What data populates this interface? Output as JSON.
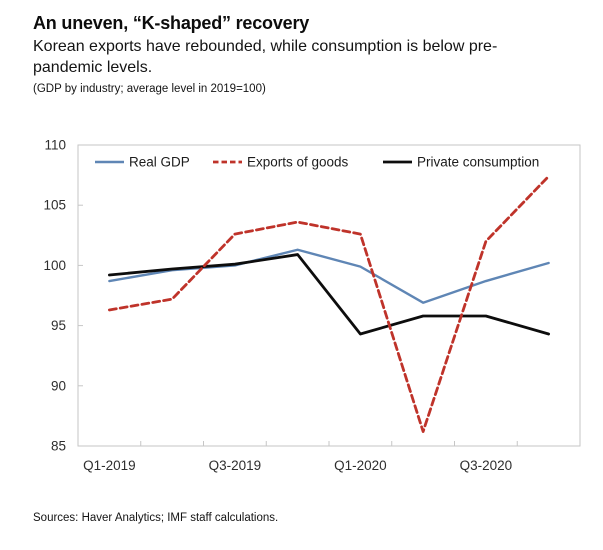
{
  "header": {
    "title": "An uneven, “K-shaped” recovery",
    "subtitle": "Korean exports have rebounded, while consumption is below pre-pandemic levels.",
    "note": "(GDP by industry; average level in 2019=100)"
  },
  "footer": {
    "sources": "Sources: Haver Analytics; IMF staff calculations."
  },
  "chart_data": {
    "type": "line",
    "title": "An uneven, “K-shaped” recovery",
    "subtitle": "Korean exports have rebounded, while consumption is below pre-pandemic levels.",
    "unit_note": "(GDP by industry; average level in 2019=100)",
    "x": [
      "Q1-2019",
      "Q2-2019",
      "Q3-2019",
      "Q4-2019",
      "Q1-2020",
      "Q2-2020",
      "Q3-2020",
      "Q4-2020"
    ],
    "x_tick_labels": [
      "Q1-2019",
      "Q3-2019",
      "Q1-2020",
      "Q3-2020"
    ],
    "x_tick_label_positions": [
      0,
      2,
      4,
      6
    ],
    "series": [
      {
        "id": "real-gdp",
        "name": "Real GDP",
        "color": "#5f86b5",
        "style": "solid",
        "stroke_width": 2.4,
        "values": [
          98.7,
          99.6,
          100.0,
          101.3,
          99.9,
          96.9,
          98.7,
          100.2
        ]
      },
      {
        "id": "exports-of-goods",
        "name": "Exports of goods",
        "color": "#bf332a",
        "style": "dashed",
        "stroke_width": 2.8,
        "values": [
          96.3,
          97.2,
          102.6,
          103.6,
          102.6,
          86.2,
          102.0,
          107.4
        ]
      },
      {
        "id": "private-consumption",
        "name": "Private consumption",
        "color": "#0d0d0d",
        "style": "solid",
        "stroke_width": 2.8,
        "values": [
          99.2,
          99.7,
          100.1,
          100.9,
          94.3,
          95.8,
          95.8,
          94.3
        ]
      }
    ],
    "ylim": [
      85,
      110
    ],
    "yticks": [
      85,
      90,
      95,
      100,
      105,
      110
    ],
    "grid": false,
    "legend_position": "top-inside",
    "axis_color": "#c6c6c6"
  }
}
